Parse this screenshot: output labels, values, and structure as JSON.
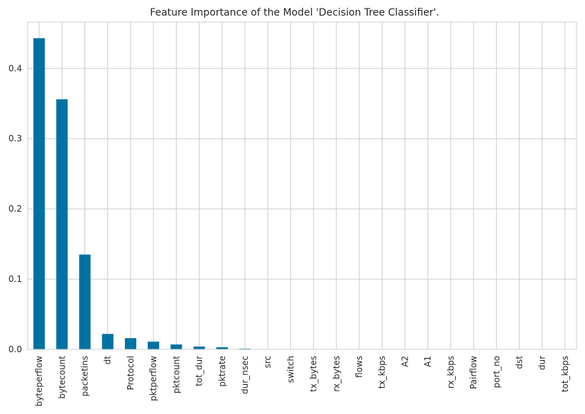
{
  "chart_data": {
    "type": "bar",
    "title": "Feature Importance of the Model 'Decision Tree Classifier'.",
    "xlabel": "",
    "ylabel": "",
    "categories": [
      "byteperflow",
      "bytecount",
      "packetins",
      "dt",
      "Protocol",
      "pktperflow",
      "pktcount",
      "tot_dur",
      "pktrate",
      "dur_nsec",
      "src",
      "switch",
      "tx_bytes",
      "rx_bytes",
      "flows",
      "tx_kbps",
      "A2",
      "A1",
      "rx_kbps",
      "Pairflow",
      "port_no",
      "dst",
      "dur",
      "tot_kbps"
    ],
    "values": [
      0.443,
      0.356,
      0.135,
      0.022,
      0.016,
      0.011,
      0.007,
      0.004,
      0.003,
      0.001,
      0,
      0,
      0,
      0,
      0,
      0,
      0,
      0,
      0,
      0,
      0,
      0,
      0,
      0
    ],
    "ylim": [
      0,
      0.466
    ],
    "yticks": [
      0.0,
      0.1,
      0.2,
      0.3,
      0.4
    ],
    "ytick_labels": [
      "0.0",
      "0.1",
      "0.2",
      "0.3",
      "0.4"
    ],
    "grid": true,
    "legend": "none",
    "bar_color": "#0072a2",
    "grid_color": "#cccccc"
  }
}
